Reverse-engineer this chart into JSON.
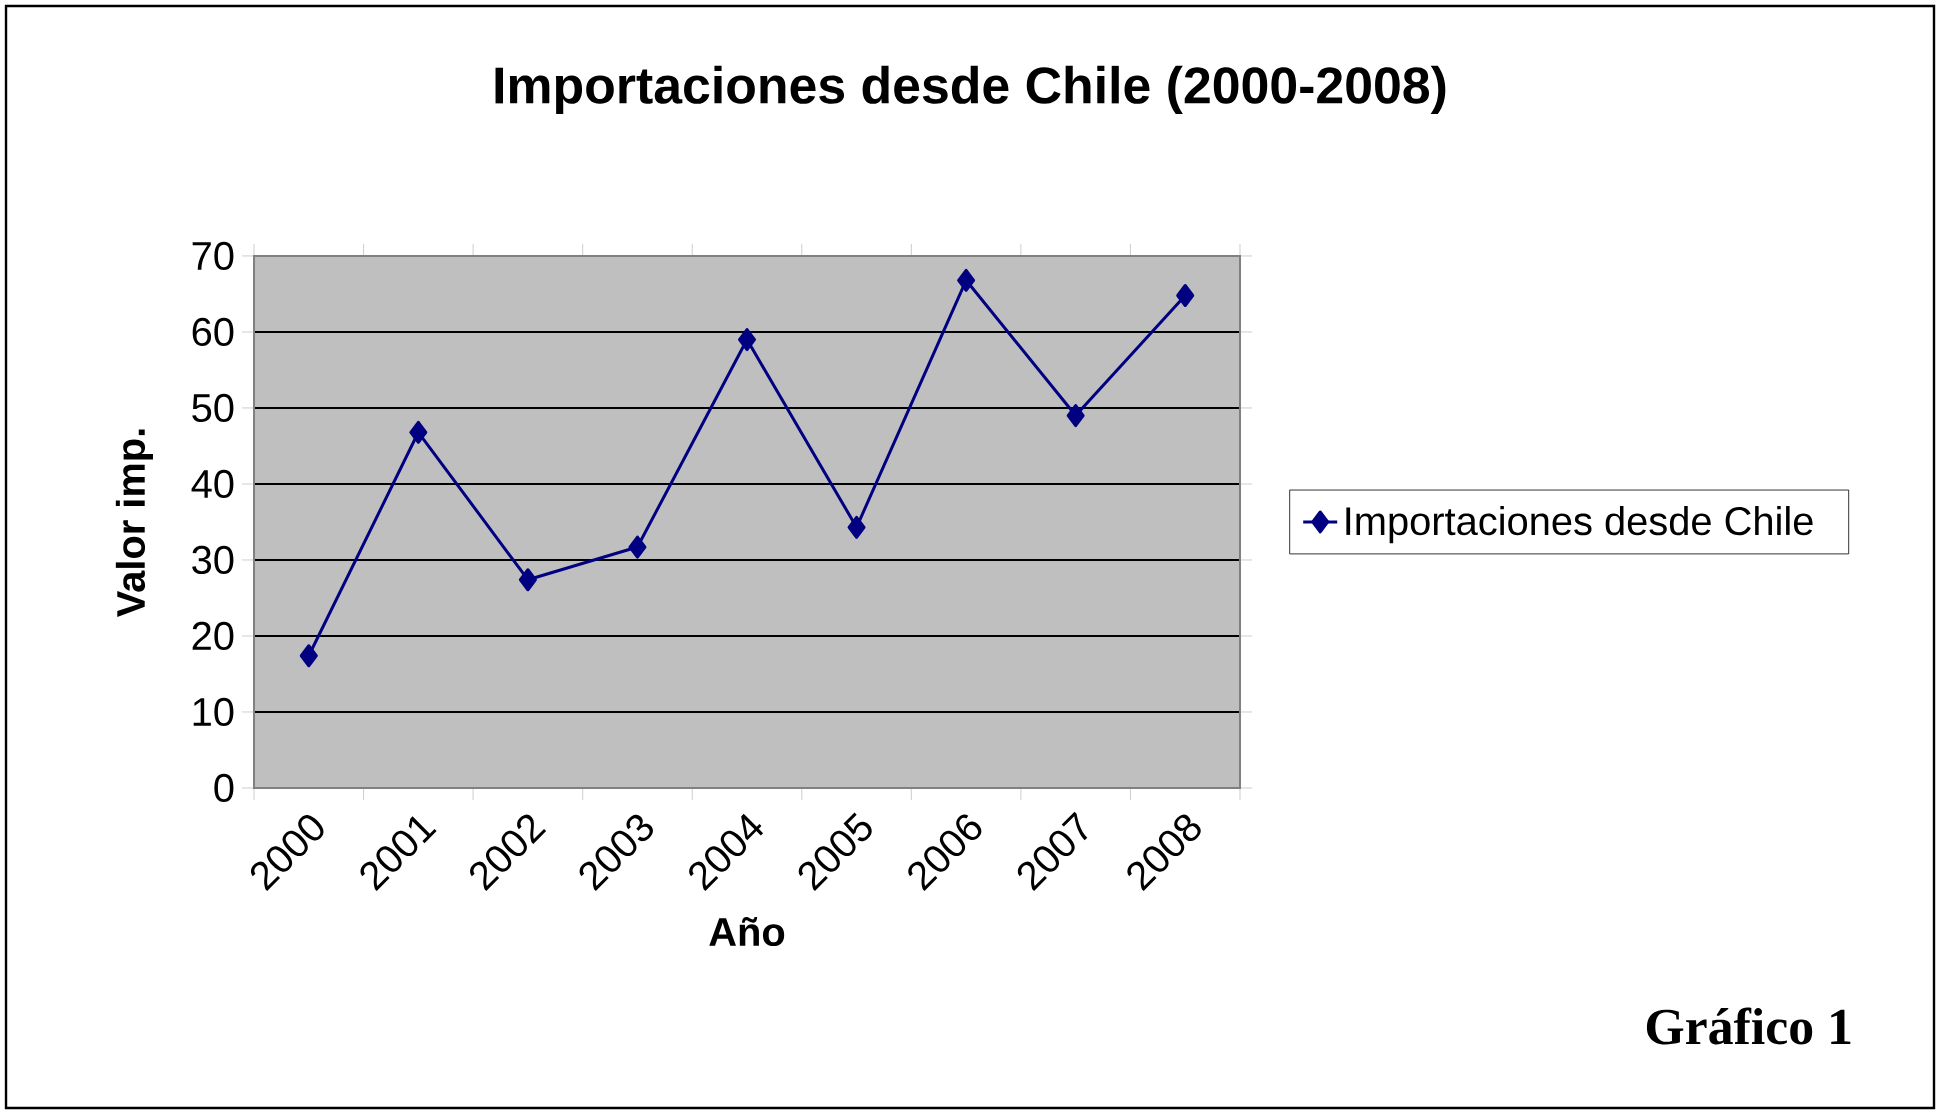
{
  "chart_data": {
    "type": "line",
    "title": "Importaciones desde Chile (2000-2008)",
    "xlabel": "Año",
    "ylabel": "Valor imp.",
    "categories": [
      "2000",
      "2001",
      "2002",
      "2003",
      "2004",
      "2005",
      "2006",
      "2007",
      "2008"
    ],
    "series": [
      {
        "name": "Importaciones desde Chile",
        "color": "#000080",
        "values": [
          17.4,
          46.8,
          27.4,
          31.7,
          59.0,
          34.3,
          66.8,
          49.0,
          64.8
        ]
      }
    ],
    "ylim": [
      0,
      70
    ],
    "yticks": [
      0,
      10,
      20,
      30,
      40,
      50,
      60,
      70
    ],
    "grid": "y",
    "legend": "right",
    "marker": "diamond",
    "line_style": "solid",
    "annotations": [
      "Gráfico 1"
    ]
  }
}
